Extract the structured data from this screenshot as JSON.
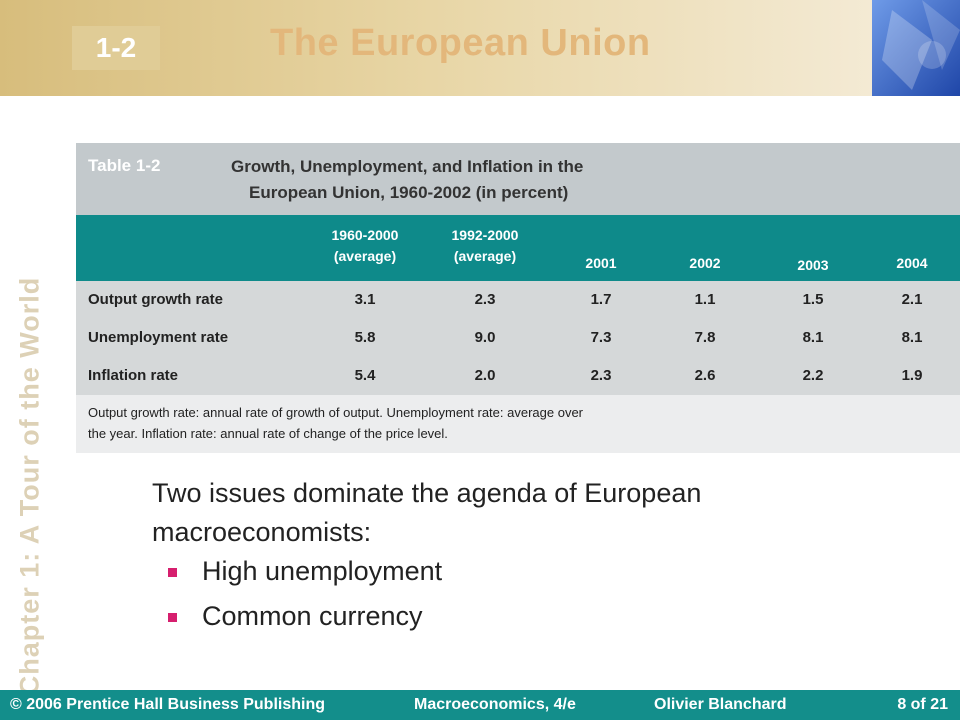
{
  "header": {
    "badge": "1-2",
    "title": "The European Union"
  },
  "sidebar": {
    "chapter_text": "Chapter 1: A Tour of the World"
  },
  "table": {
    "label": "Table 1-2",
    "title_line1": "Growth, Unemployment, and Inflation in the",
    "title_line2": "European Union, 1960-2002 (in percent)",
    "columns": [
      {
        "line1": "1960-2000",
        "line2": "(average)"
      },
      {
        "line1": "1992-2000",
        "line2": "(average)"
      },
      {
        "line1": "2001",
        "line2": ""
      },
      {
        "line1": "2002",
        "line2": ""
      },
      {
        "line1": "2003",
        "line2": ""
      },
      {
        "line1": "2004",
        "line2": ""
      }
    ],
    "rows": [
      {
        "label": "Output growth rate",
        "values": [
          "3.1",
          "2.3",
          "1.7",
          "1.1",
          "1.5",
          "2.1"
        ]
      },
      {
        "label": "Unemployment rate",
        "values": [
          "5.8",
          "9.0",
          "7.3",
          "7.8",
          "8.1",
          "8.1"
        ]
      },
      {
        "label": "Inflation rate",
        "values": [
          "5.4",
          "2.0",
          "2.3",
          "2.6",
          "2.2",
          "1.9"
        ]
      }
    ],
    "note_line1": "Output growth rate:  annual rate of growth of output.  Unemployment rate:  average over",
    "note_line2": "the year.  Inflation rate:  annual rate of change of the price level."
  },
  "content": {
    "intro": "Two issues dominate the agenda of European macroeconomists:",
    "bullets": [
      "High unemployment",
      "Common currency"
    ]
  },
  "footer": {
    "publisher": "© 2006 Prentice Hall Business Publishing",
    "book": "Macroeconomics, 4/e",
    "author": "Olivier Blanchard",
    "page": "8 of 21"
  },
  "colors": {
    "header_gold": "#d7bd7c",
    "title": "#e3b77b",
    "teal": "#0e8a8a",
    "bullet": "#d61f6e"
  }
}
